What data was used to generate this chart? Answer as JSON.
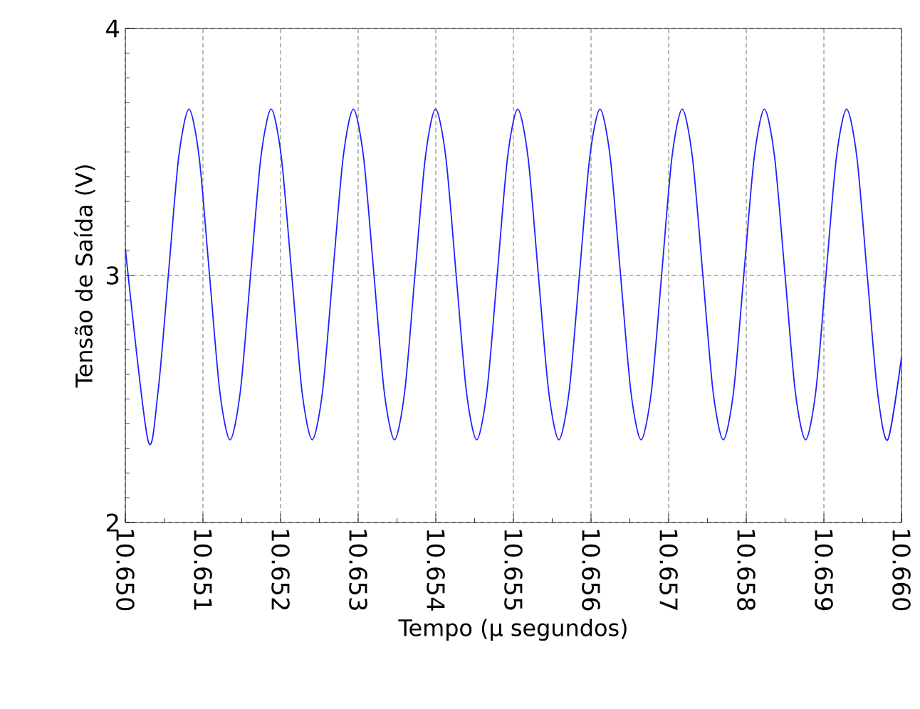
{
  "chart_data": {
    "type": "line",
    "xlabel": "Tempo (µ segundos)",
    "ylabel": "Tensão de Saída (V)",
    "xlim": [
      10.65,
      10.66
    ],
    "ylim": [
      2,
      4
    ],
    "xticks": [
      {
        "value": 10.65,
        "label": "10.650"
      },
      {
        "value": 10.651,
        "label": "10.651"
      },
      {
        "value": 10.652,
        "label": "10.652"
      },
      {
        "value": 10.653,
        "label": "10.653"
      },
      {
        "value": 10.654,
        "label": "10.654"
      },
      {
        "value": 10.655,
        "label": "10.655"
      },
      {
        "value": 10.656,
        "label": "10.656"
      },
      {
        "value": 10.657,
        "label": "10.657"
      },
      {
        "value": 10.658,
        "label": "10.658"
      },
      {
        "value": 10.659,
        "label": "10.659"
      },
      {
        "value": 10.66,
        "label": "10.660"
      }
    ],
    "yticks": [
      2,
      3,
      4
    ],
    "grid": true,
    "marker": "none",
    "line_style": "solid",
    "series": [
      {
        "color": "#2020ff",
        "x": [
          10.65,
          10.65029,
          10.650422,
          10.650555,
          10.650687,
          10.65082,
          10.650952,
          10.651084,
          10.651217,
          10.651349,
          10.651482,
          10.651614,
          10.651746,
          10.651879,
          10.652011,
          10.652144,
          10.652276,
          10.652408,
          10.652541,
          10.652673,
          10.652806,
          10.652938,
          10.65307,
          10.653203,
          10.653335,
          10.653468,
          10.6536,
          10.653732,
          10.653865,
          10.653997,
          10.65413,
          10.654262,
          10.654394,
          10.654527,
          10.654659,
          10.654792,
          10.654924,
          10.655056,
          10.655189,
          10.655321,
          10.655454,
          10.655586,
          10.655718,
          10.655851,
          10.655983,
          10.656116,
          10.656248,
          10.65638,
          10.656513,
          10.656645,
          10.656778,
          10.65691,
          10.657042,
          10.657175,
          10.657307,
          10.65744,
          10.657572,
          10.657704,
          10.657837,
          10.657969,
          10.658102,
          10.658234,
          10.658366,
          10.658499,
          10.658631,
          10.658764,
          10.658896,
          10.659028,
          10.659161,
          10.659293,
          10.659426,
          10.659558,
          10.65969,
          10.659823,
          10.66
        ],
        "values": [
          3.11,
          2.335,
          2.531,
          3.004,
          3.477,
          3.673,
          3.477,
          3.004,
          2.531,
          2.335,
          2.531,
          3.004,
          3.477,
          3.673,
          3.477,
          3.004,
          2.531,
          2.335,
          2.531,
          3.004,
          3.477,
          3.673,
          3.477,
          3.004,
          2.531,
          2.335,
          2.531,
          3.004,
          3.477,
          3.673,
          3.477,
          3.004,
          2.531,
          2.335,
          2.531,
          3.004,
          3.477,
          3.673,
          3.477,
          3.004,
          2.531,
          2.335,
          2.531,
          3.004,
          3.477,
          3.673,
          3.477,
          3.004,
          2.531,
          2.335,
          2.531,
          3.004,
          3.477,
          3.673,
          3.477,
          3.004,
          2.531,
          2.335,
          2.531,
          3.004,
          3.477,
          3.673,
          3.477,
          3.004,
          2.531,
          2.335,
          2.531,
          3.004,
          3.477,
          3.673,
          3.477,
          3.004,
          2.531,
          2.335,
          2.67
        ]
      }
    ]
  }
}
